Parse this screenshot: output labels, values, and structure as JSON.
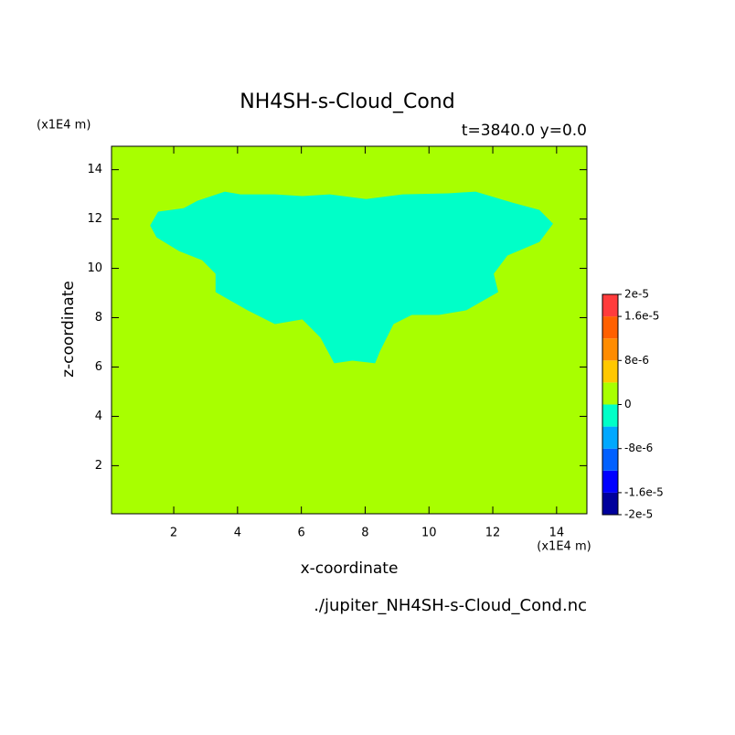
{
  "chart_data": {
    "type": "contour",
    "title": "NH4SH-s-Cloud_Cond",
    "subtitle": "t=3840.0 y=0.0",
    "y_unit": "(x1E4 m)",
    "x_unit": "(x1E4 m)",
    "xlabel": "x-coordinate",
    "ylabel": "z-coordinate",
    "footer": "./jupiter_NH4SH-s-Cloud_Cond.nc",
    "xlim": [
      0.05,
      14.95
    ],
    "ylim": [
      0.05,
      14.95
    ],
    "xticks": [
      2,
      4,
      6,
      8,
      10,
      12,
      14
    ],
    "yticks": [
      2,
      4,
      6,
      8,
      10,
      12,
      14
    ],
    "background_color": "#a8ff00",
    "regions": [
      {
        "color": "#00ffc8",
        "x": [
          1.26,
          1.51,
          2.31,
          2.74,
          3.6,
          4.09,
          5.17,
          6.03,
          6.89,
          8.03,
          9.17,
          10.6,
          11.46,
          12.6,
          13.46,
          13.89,
          13.46,
          12.46,
          12.03,
          12.17,
          11.17,
          10.31,
          9.46,
          8.89,
          8.46,
          8.31,
          7.6,
          7.03,
          6.6,
          6.03,
          5.17,
          4.31,
          3.31,
          3.31,
          2.89,
          2.17,
          1.46
        ],
        "y": [
          11.74,
          12.3,
          12.44,
          12.74,
          13.11,
          13.0,
          13.0,
          12.93,
          13.0,
          12.81,
          13.0,
          13.04,
          13.11,
          12.67,
          12.37,
          11.81,
          11.07,
          10.52,
          9.78,
          9.04,
          8.3,
          8.11,
          8.11,
          7.74,
          6.63,
          6.15,
          6.26,
          6.15,
          7.19,
          7.93,
          7.74,
          8.3,
          9.04,
          9.78,
          10.33,
          10.7,
          11.26
        ]
      }
    ],
    "colorbar": {
      "levels": [
        -2e-05,
        -1.6e-05,
        -1.2e-05,
        -8e-06,
        -4e-06,
        0,
        4e-06,
        8e-06,
        1.2e-05,
        1.6e-05,
        2e-05
      ],
      "colors": [
        "#00009c",
        "#0000ff",
        "#0060ff",
        "#00a8ff",
        "#00ffc8",
        "#a8ff00",
        "#ffc800",
        "#ff8c00",
        "#ff6000",
        "#ff3c3c"
      ],
      "ticks": [
        {
          "value": 2e-05,
          "label": "2e-5"
        },
        {
          "value": 1.6e-05,
          "label": "1.6e-5"
        },
        {
          "value": 8e-06,
          "label": "8e-6"
        },
        0,
        {
          "value": -8e-06,
          "label": "-8e-6"
        },
        {
          "value": -1.6e-05,
          "label": "-1.6e-5"
        },
        {
          "value": -2e-05,
          "label": "-2e-5"
        }
      ]
    }
  }
}
